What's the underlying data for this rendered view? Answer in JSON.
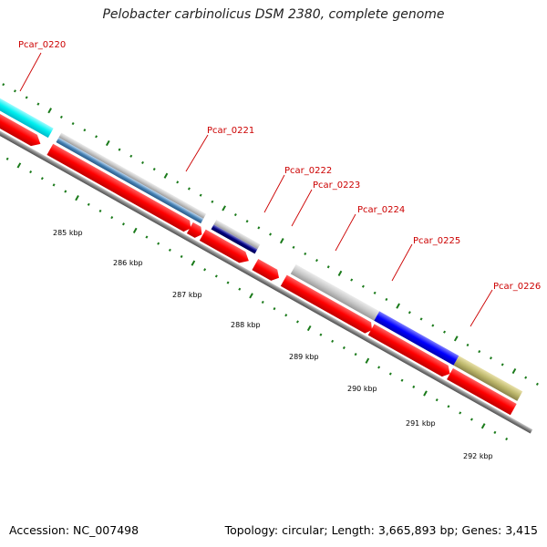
{
  "title": "Pelobacter carbinolicus DSM 2380, complete genome",
  "footer": {
    "accession": "Accession: NC_007498",
    "summary": "Topology: circular; Length: 3,665,893 bp; Genes: 3,415"
  },
  "colors": {
    "forward_cds": "#ff0000",
    "backbone": "#808080",
    "tick": "#1a7a1a",
    "label": "#cc0000"
  },
  "gene_labels": [
    {
      "id": "g0220",
      "text": "Pcar_0220"
    },
    {
      "id": "g0221",
      "text": "Pcar_0221"
    },
    {
      "id": "g0222",
      "text": "Pcar_0222"
    },
    {
      "id": "g0223",
      "text": "Pcar_0223"
    },
    {
      "id": "g0224",
      "text": "Pcar_0224"
    },
    {
      "id": "g0225",
      "text": "Pcar_0225"
    },
    {
      "id": "g0226",
      "text": "Pcar_0226"
    }
  ],
  "scale_labels": [
    "285 kbp",
    "286 kbp",
    "287 kbp",
    "288 kbp",
    "289 kbp",
    "290 kbp",
    "291 kbp",
    "292 kbp"
  ]
}
